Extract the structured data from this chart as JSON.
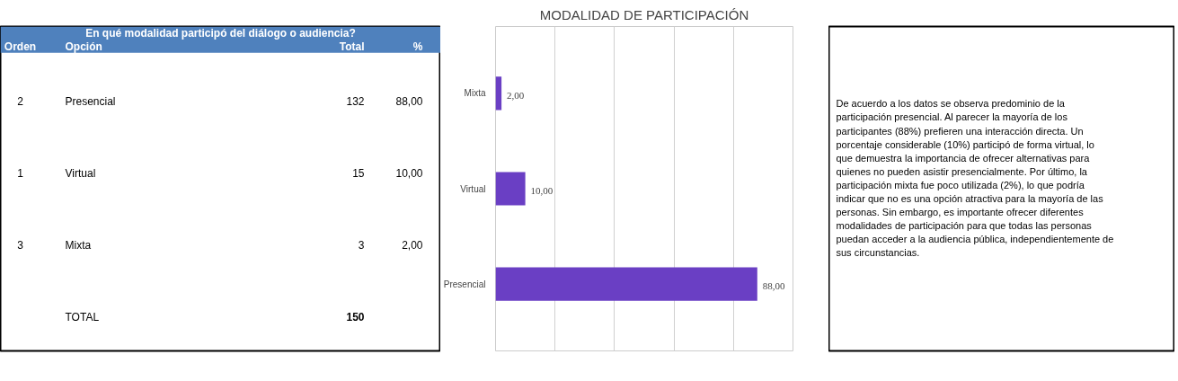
{
  "chart_data": [
    {
      "type": "other",
      "title": "En qué modalidad participó del diálogo o audiencia?",
      "annotations": [
        "Orden",
        "Opción",
        "Total",
        "%",
        "2",
        "Presencial",
        "132",
        "88,00",
        "1",
        "Virtual",
        "15",
        "10,00",
        "3",
        "Mixta",
        "3",
        "2,00",
        null,
        "TOTAL",
        "150",
        null
      ]
    },
    {
      "type": "bar",
      "orientation": "horizontal",
      "title": "MODALIDAD DE PARTICIPACIÓN",
      "categories": [
        "Mixta",
        "Virtual",
        "Presencial"
      ],
      "values": [
        2,
        10,
        88
      ],
      "color": "#6a3fc4",
      "value_labels": [
        "2,00",
        "10,00",
        "88,00"
      ],
      "xlim": [
        0,
        100
      ],
      "xticks": [
        {
          "value": 0,
          "label": null
        },
        {
          "value": 20,
          "label": null
        },
        {
          "value": 40,
          "label": null
        },
        {
          "value": 60,
          "label": null
        },
        {
          "value": 80,
          "label": null
        },
        {
          "value": 100,
          "label": null
        }
      ],
      "grid": "x",
      "tick_labels": "y"
    },
    {
      "type": "other",
      "annotations": [
        "De acuerdo a los datos se observa predominio de la participación presencial. Al parecer la mayoría de los participantes (88%) prefieren una interacción directa. Un porcentaje considerable (10%) participó de forma virtual, lo que demuestra la importancia de ofrecer alternativas para quienes no pueden asistir presencialmente. Por último, la participación mixta fue poco utilizada (2%), lo que podría indicar que no es una opción atractiva para la mayoría de las personas. Sin embargo, es importante ofrecer diferentes modalidades de participación para que todas las personas puedan acceder a la audiencia pública, independientemente de sus circunstancias."
      ]
    }
  ]
}
